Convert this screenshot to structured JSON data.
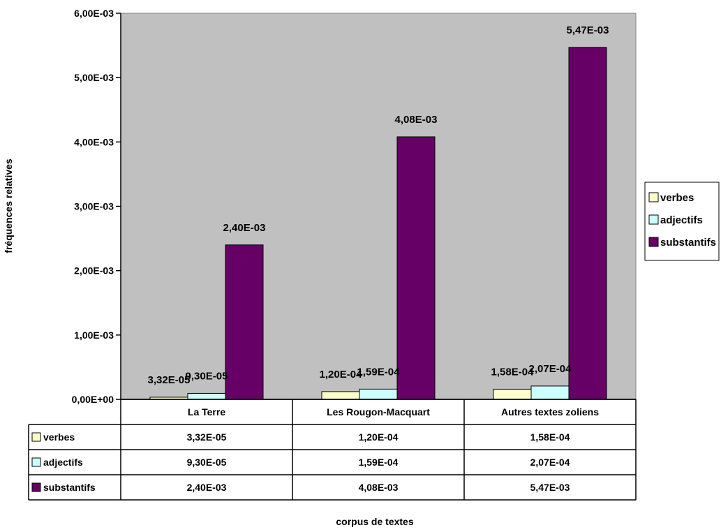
{
  "chart_data": {
    "type": "bar",
    "title": "",
    "xlabel": "corpus de textes",
    "ylabel": "fréquences relatives",
    "ylim": [
      0,
      0.006
    ],
    "yticks": [
      {
        "value": 0,
        "label": "0,00E+00"
      },
      {
        "value": 0.001,
        "label": "1,00E-03"
      },
      {
        "value": 0.002,
        "label": "2,00E-03"
      },
      {
        "value": 0.003,
        "label": "3,00E-03"
      },
      {
        "value": 0.004,
        "label": "4,00E-03"
      },
      {
        "value": 0.005,
        "label": "5,00E-03"
      },
      {
        "value": 0.006,
        "label": "6,00E-03"
      }
    ],
    "categories": [
      "La Terre",
      "Les Rougon-Macquart",
      "Autres textes zoliens"
    ],
    "series": [
      {
        "name": "verbes",
        "color": "#ffffcc",
        "values": [
          3.32e-05,
          0.00012,
          0.000158
        ],
        "labels": [
          "3,32E-05",
          "1,20E-04",
          "1,58E-04"
        ]
      },
      {
        "name": "adjectifs",
        "color": "#ccffff",
        "values": [
          9.3e-05,
          0.000159,
          0.000207
        ],
        "labels": [
          "9,30E-05",
          "1,59E-04",
          "2,07E-04"
        ]
      },
      {
        "name": "substantifs",
        "color": "#660066",
        "values": [
          0.0024,
          0.00408,
          0.00547
        ],
        "labels": [
          "2,40E-03",
          "4,08E-03",
          "5,47E-03"
        ]
      }
    ],
    "grid": false,
    "legend": "right",
    "plot_background": "#c0c0c0",
    "data_table": true
  }
}
